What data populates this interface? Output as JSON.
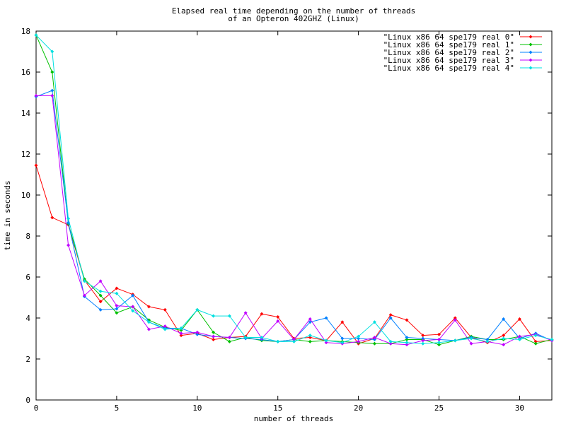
{
  "chart_data": {
    "type": "line",
    "title": [
      "Elapsed real time depending on the number of threads",
      "of an Opteron 402GHZ (Linux)"
    ],
    "xlabel": "number of threads",
    "ylabel": "time in seconds",
    "xlim": [
      0,
      32
    ],
    "ylim": [
      0,
      18
    ],
    "xticks": [
      0,
      5,
      10,
      15,
      20,
      25,
      30
    ],
    "yticks": [
      0,
      2,
      4,
      6,
      8,
      10,
      12,
      14,
      16,
      18
    ],
    "grid": false,
    "legend": "top-right",
    "x": [
      0,
      1,
      2,
      3,
      4,
      5,
      6,
      7,
      8,
      9,
      10,
      11,
      12,
      13,
      14,
      15,
      16,
      17,
      18,
      19,
      20,
      21,
      22,
      23,
      24,
      25,
      26,
      27,
      28,
      29,
      30,
      31,
      32
    ],
    "series": [
      {
        "name": "\"Linux x86 64 spe179 real 0\"",
        "color": "#ff0000",
        "values": [
          11.45,
          8.9,
          8.55,
          5.85,
          4.8,
          5.45,
          5.15,
          4.55,
          4.4,
          3.15,
          3.25,
          2.95,
          3.05,
          3.1,
          4.2,
          4.05,
          3.0,
          3.05,
          2.9,
          3.8,
          2.75,
          3.0,
          4.15,
          3.9,
          3.15,
          3.2,
          4.0,
          3.05,
          2.8,
          3.15,
          3.95,
          2.85,
          2.9
        ]
      },
      {
        "name": "\"Linux x86 64 spe179 real 1\"",
        "color": "#00c000",
        "values": [
          17.8,
          16.0,
          8.6,
          5.9,
          5.1,
          4.25,
          4.55,
          3.9,
          3.55,
          3.4,
          4.4,
          3.3,
          2.85,
          3.05,
          2.9,
          2.85,
          2.95,
          2.85,
          2.9,
          2.85,
          2.8,
          2.75,
          2.75,
          2.95,
          2.95,
          2.7,
          2.9,
          3.1,
          2.95,
          2.95,
          3.1,
          2.75,
          2.95
        ]
      },
      {
        "name": "\"Linux x86 64 spe179 real 2\"",
        "color": "#0080ff",
        "values": [
          14.8,
          15.1,
          8.65,
          5.05,
          4.4,
          4.45,
          5.1,
          3.8,
          3.5,
          3.5,
          3.2,
          3.1,
          3.05,
          3.0,
          2.95,
          2.85,
          2.95,
          3.8,
          4.0,
          3.0,
          3.0,
          2.95,
          4.0,
          3.05,
          3.0,
          2.95,
          2.9,
          3.05,
          2.95,
          3.95,
          3.0,
          3.25,
          2.9
        ]
      },
      {
        "name": "\"Linux x86 64 spe179 real 3\"",
        "color": "#c000ff",
        "values": [
          14.85,
          14.85,
          7.55,
          5.1,
          5.8,
          4.6,
          4.55,
          3.45,
          3.6,
          3.25,
          3.3,
          3.1,
          3.05,
          4.25,
          3.0,
          3.85,
          2.95,
          3.95,
          2.8,
          2.75,
          2.85,
          3.05,
          2.75,
          2.7,
          2.9,
          2.95,
          3.9,
          2.75,
          2.85,
          2.7,
          3.1,
          3.2,
          2.9
        ]
      },
      {
        "name": "\"Linux x86 64 spe179 real 4\"",
        "color": "#00e0e0",
        "values": [
          17.8,
          17.0,
          8.85,
          5.8,
          5.3,
          5.2,
          4.35,
          3.8,
          3.45,
          3.5,
          4.4,
          4.1,
          4.1,
          3.05,
          3.05,
          2.85,
          2.85,
          3.15,
          2.9,
          2.8,
          3.1,
          3.8,
          2.85,
          2.8,
          2.75,
          2.8,
          2.9,
          3.0,
          2.85,
          3.0,
          2.95,
          3.15,
          2.95
        ]
      }
    ]
  }
}
